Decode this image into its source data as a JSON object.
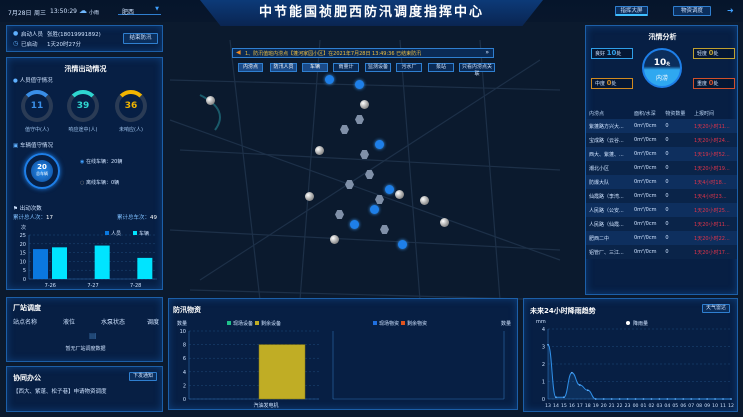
{
  "header": {
    "date": "7月28日",
    "weekday": "周三",
    "time": "13:50:29",
    "weather": "小雨",
    "city": "肥西",
    "title": "中节能国祯肥西防汛调度指挥中心",
    "nav": [
      "指挥大屏",
      "物资调度"
    ]
  },
  "icons": {
    "weather": "cloud-rain-icon",
    "person": "person-icon",
    "clock": "clock-icon",
    "car": "car-icon",
    "flag": "flag-icon",
    "speaker": "speaker-icon",
    "logout": "logout-icon"
  },
  "launch": {
    "person_label": "启动人员",
    "person_value": "张胜(18019991892)",
    "started_label": "已启动",
    "started_value": "1天20时27分",
    "end_button": "结束防汛"
  },
  "dispatch": {
    "title": "汛情出动情况",
    "personnel_title": "人员值守情况",
    "rings": [
      {
        "value": "11",
        "label": "值守中(人)",
        "color": "#3a8fe8",
        "frac": 0.2
      },
      {
        "value": "39",
        "label": "响应途中(人)",
        "color": "#2fd6d0",
        "frac": 0.35
      },
      {
        "value": "36",
        "label": "未响应(人)",
        "color": "#f0b400",
        "frac": 0.3
      }
    ],
    "vehicle_title": "车辆值守情况",
    "vehicle_total": "20",
    "vehicle_total_label": "总车辆",
    "online": "在线车辆：20辆",
    "offline": "离线车辆：0辆",
    "trips_title": "出动次数",
    "total_person_label": "累计总人次：",
    "total_person": "17",
    "total_vehicle_label": "累计总车次：",
    "total_vehicle": "49"
  },
  "chart_data": [
    {
      "type": "bar",
      "ylabel": "次",
      "categories": [
        "7-26",
        "7-27",
        "7-28"
      ],
      "ylim": [
        0,
        25
      ],
      "yticks": [
        0,
        5,
        10,
        15,
        20,
        25
      ],
      "legend": "top-right",
      "grid": true,
      "series": [
        {
          "name": "人员",
          "color": "#0a78e0",
          "values": [
            17,
            0,
            0
          ]
        },
        {
          "name": "车辆",
          "color": "#00e4ff",
          "values": [
            18,
            19,
            12
          ]
        }
      ]
    },
    {
      "type": "bar",
      "ylabel": "数量",
      "categories": [
        "汽油发电机"
      ],
      "ylim": [
        0,
        10
      ],
      "yticks": [
        0,
        2,
        4,
        6,
        8,
        10
      ],
      "legend": "top",
      "grid": true,
      "series": [
        {
          "name": "现场设备",
          "color": "#1fc08a",
          "values": [
            0
          ]
        },
        {
          "name": "剩余设备",
          "color": "#c0ad25",
          "values": [
            8
          ]
        }
      ]
    },
    {
      "type": "bar",
      "ylabel": "数量",
      "categories": [],
      "legend": "top",
      "series": [
        {
          "name": "现场物资",
          "color": "#1f6fe0",
          "values": []
        },
        {
          "name": "剩余物资",
          "color": "#e0541f",
          "values": []
        }
      ]
    },
    {
      "type": "line",
      "ylabel": "mm",
      "ylim": [
        0,
        4
      ],
      "yticks": [
        0,
        1,
        2,
        3,
        4
      ],
      "legend": "top",
      "grid": true,
      "categories": [
        "13",
        "14",
        "15",
        "16",
        "17",
        "18",
        "19",
        "20",
        "21",
        "22",
        "23",
        "00",
        "01",
        "02",
        "03",
        "04",
        "05",
        "06",
        "07",
        "08",
        "09",
        "10",
        "11",
        "12"
      ],
      "series": [
        {
          "name": "降雨量",
          "color": "#2f8fe8",
          "values": [
            3.1,
            0.1,
            0.1,
            1.5,
            0.8,
            0.5,
            0,
            0,
            0,
            0,
            0,
            0,
            0,
            0,
            0,
            0,
            0,
            0,
            0,
            0,
            0,
            0,
            0,
            0
          ]
        }
      ]
    }
  ],
  "map": {
    "tabs": [
      "内涝点",
      "防汛人员",
      "车辆",
      "雨量计",
      "监测设备",
      "污水厂",
      "泵站",
      "只看内涝点关联"
    ],
    "notice": "1、防汛值班内涝点【蓬河家园小区】在2021年7月28日 13:49:36 已结束防汛"
  },
  "analysis": {
    "title": "汛情分析",
    "center_value": "10",
    "center_unit": "处",
    "center_label": "内涝",
    "tags": [
      {
        "label": "良好",
        "value": "10",
        "unit": "处",
        "color": "#2f9fe8"
      },
      {
        "label": "轻度",
        "value": "0",
        "unit": "处",
        "color": "#c0a030"
      },
      {
        "label": "中度",
        "value": "0",
        "unit": "处",
        "color": "#d08a20"
      },
      {
        "label": "重度",
        "value": "0",
        "unit": "处",
        "color": "#d0502a"
      }
    ],
    "columns": [
      "内涝点",
      "面积/水深",
      "物资数量",
      "上报时间"
    ],
    "rows": [
      [
        "紫蓬路方兴大...",
        "0m²/0cm",
        "0",
        "1天20小时11..."
      ],
      [
        "宝成路（云谷...",
        "0m²/0cm",
        "0",
        "1天20小时24..."
      ],
      [
        "西大、紫蓬、...",
        "0m²/0cm",
        "0",
        "1天19小时52..."
      ],
      [
        "潮北小区",
        "0m²/0cm",
        "0",
        "1天20小时19..."
      ],
      [
        "防爆大队",
        "0m²/0cm",
        "0",
        "1天4小时18..."
      ],
      [
        "仙霞路（李湾...",
        "0m²/0cm",
        "0",
        "1天4小时23..."
      ],
      [
        "人民路（公安...",
        "0m²/0cm",
        "0",
        "1天20小时25..."
      ],
      [
        "人民路（仙霞...",
        "0m²/0cm",
        "0",
        "1天20小时11..."
      ],
      [
        "肥西二中",
        "0m²/0cm",
        "0",
        "1天20小时22..."
      ],
      [
        "铝管厂、三江...",
        "0m²/0cm",
        "0",
        "1天20小时17..."
      ]
    ]
  },
  "station": {
    "title": "厂站调度",
    "columns": [
      "站点名称",
      "液位",
      "水泵状态",
      "调度"
    ],
    "empty": "暂无厂站调度数据"
  },
  "office": {
    "title": "协同办公",
    "button": "下发通知",
    "item": "【西大、紫蓬、松子巷】申请物资调度"
  },
  "supplies": {
    "title": "防汛物资"
  },
  "rain": {
    "title": "未来24小时降雨趋势",
    "button": "天气雷达"
  }
}
